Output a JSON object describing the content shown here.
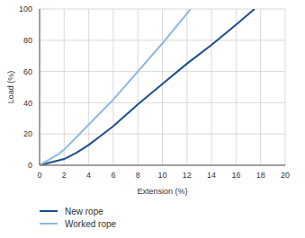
{
  "chart_data": {
    "type": "line",
    "x_label": "Extension (%)",
    "y_label": "Load (%)",
    "xlim": [
      0,
      20
    ],
    "xticks": [
      0,
      2,
      4,
      6,
      8,
      10,
      12,
      14,
      16,
      18,
      20
    ],
    "ylim": [
      0,
      100
    ],
    "yticks": [
      0,
      20,
      40,
      60,
      80,
      100
    ],
    "grid": true,
    "legend": "bottom left",
    "series": [
      {
        "name": "New rope",
        "color": "#1b4f8c",
        "x": [
          0,
          1,
          2,
          3,
          4,
          5,
          6,
          8,
          10,
          12,
          14,
          16,
          17.5
        ],
        "values": [
          0,
          2,
          4,
          8,
          13,
          19,
          25,
          39,
          52,
          65,
          77,
          90,
          100
        ]
      },
      {
        "name": "Worked rope",
        "color": "#8db9df",
        "x": [
          0,
          1.5,
          2,
          4,
          6,
          8,
          10,
          12.3
        ],
        "values": [
          0,
          7,
          10,
          26,
          42,
          60,
          78,
          100
        ]
      }
    ]
  }
}
